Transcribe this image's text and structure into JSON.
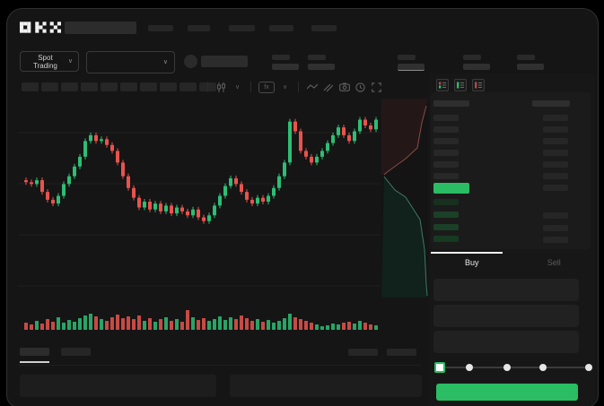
{
  "brand": {
    "logo": "OKX"
  },
  "instrument_bar": {
    "market_selector_label": "Spot Trading"
  },
  "chart_toolbar": {
    "icons": [
      "candlestick-type-icon",
      "chart-type-chevron",
      "indicators-icon",
      "indicators-chevron",
      "line-tool-icon",
      "drawing-tools-icon",
      "camera-icon",
      "history-clock-icon",
      "fullscreen-icon"
    ]
  },
  "order_book": {
    "view_modes": [
      "split-book",
      "bids-only",
      "asks-only"
    ],
    "ask_rows": 6,
    "bid_rows": 4,
    "bid_left_colors": [
      "#17301f",
      "#1b4028",
      "#1b4028",
      "#173a22"
    ],
    "bid_right_bars": [
      false,
      true,
      true,
      true
    ],
    "last_price_highlight": "up"
  },
  "trade_panel": {
    "tabs": {
      "buy": "Buy",
      "sell": "Sell"
    },
    "slider_stops": [
      0,
      25,
      50,
      75,
      100
    ]
  },
  "colors": {
    "accent_green": "#2abd64",
    "candle_up": "#2ebd74",
    "candle_down": "#e8534e",
    "grid": "#1e1e1e",
    "depth_ask_fill": "#241718",
    "depth_ask_line": "#8a4a47",
    "depth_bid_fill": "#11211b",
    "depth_bid_line": "#3c7a68"
  },
  "chart_data": {
    "type": "candlestick",
    "title": "",
    "xlabel": "",
    "ylabel": "",
    "ylim": [
      30,
      95
    ],
    "grid": "faint-horizontal",
    "open_first": 56,
    "closes": [
      55,
      54,
      56,
      50,
      46,
      44,
      48,
      54,
      58,
      63,
      68,
      76,
      79,
      76,
      77,
      74,
      71,
      65,
      58,
      52,
      47,
      42,
      45,
      41,
      44,
      40,
      43,
      39,
      42,
      40,
      38,
      41,
      37,
      35,
      38,
      43,
      48,
      53,
      57,
      54,
      50,
      46,
      44,
      47,
      45,
      48,
      52,
      58,
      65,
      86,
      81,
      71,
      68,
      65,
      68,
      71,
      75,
      79,
      83,
      79,
      76,
      81,
      87,
      84,
      82,
      87
    ],
    "volume": [
      8,
      6,
      10,
      7,
      12,
      9,
      14,
      8,
      11,
      9,
      13,
      16,
      18,
      15,
      12,
      10,
      14,
      17,
      13,
      15,
      12,
      16,
      10,
      13,
      9,
      12,
      14,
      10,
      12,
      9,
      22,
      14,
      11,
      13,
      10,
      12,
      15,
      11,
      14,
      12,
      16,
      13,
      10,
      12,
      9,
      11,
      8,
      10,
      13,
      18,
      14,
      12,
      10,
      8,
      6,
      4,
      5,
      7,
      6,
      8,
      9,
      7,
      10,
      8,
      6,
      5
    ],
    "depth": {
      "ask_line": [
        [
          3,
          85
        ],
        [
          5,
          83
        ],
        [
          27,
          67
        ],
        [
          40,
          55
        ],
        [
          45,
          27
        ],
        [
          50,
          8
        ]
      ],
      "bid_line": [
        [
          3,
          87
        ],
        [
          15,
          102
        ],
        [
          27,
          110
        ],
        [
          43,
          135
        ],
        [
          48,
          168
        ],
        [
          50,
          208
        ],
        [
          51,
          220
        ]
      ]
    }
  }
}
